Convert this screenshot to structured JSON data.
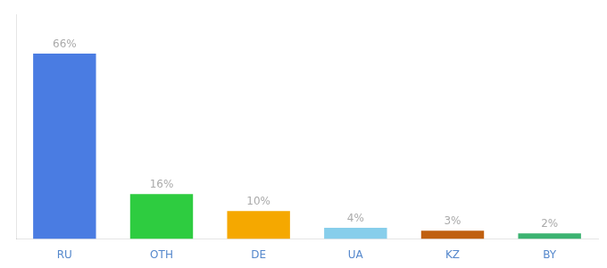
{
  "chart_data": {
    "type": "bar",
    "categories": [
      "RU",
      "OTH",
      "DE",
      "UA",
      "KZ",
      "BY"
    ],
    "values": [
      66,
      16,
      10,
      4,
      3,
      2
    ],
    "value_labels": [
      "66%",
      "16%",
      "10%",
      "4%",
      "3%",
      "2%"
    ],
    "colors": [
      "#4a7ce2",
      "#2ecc40",
      "#f5a800",
      "#87ceeb",
      "#c06010",
      "#3cb371"
    ],
    "ylim": [
      0,
      80
    ],
    "yticks": [],
    "grid": false,
    "data_labels": true,
    "tick_labels": "x"
  }
}
